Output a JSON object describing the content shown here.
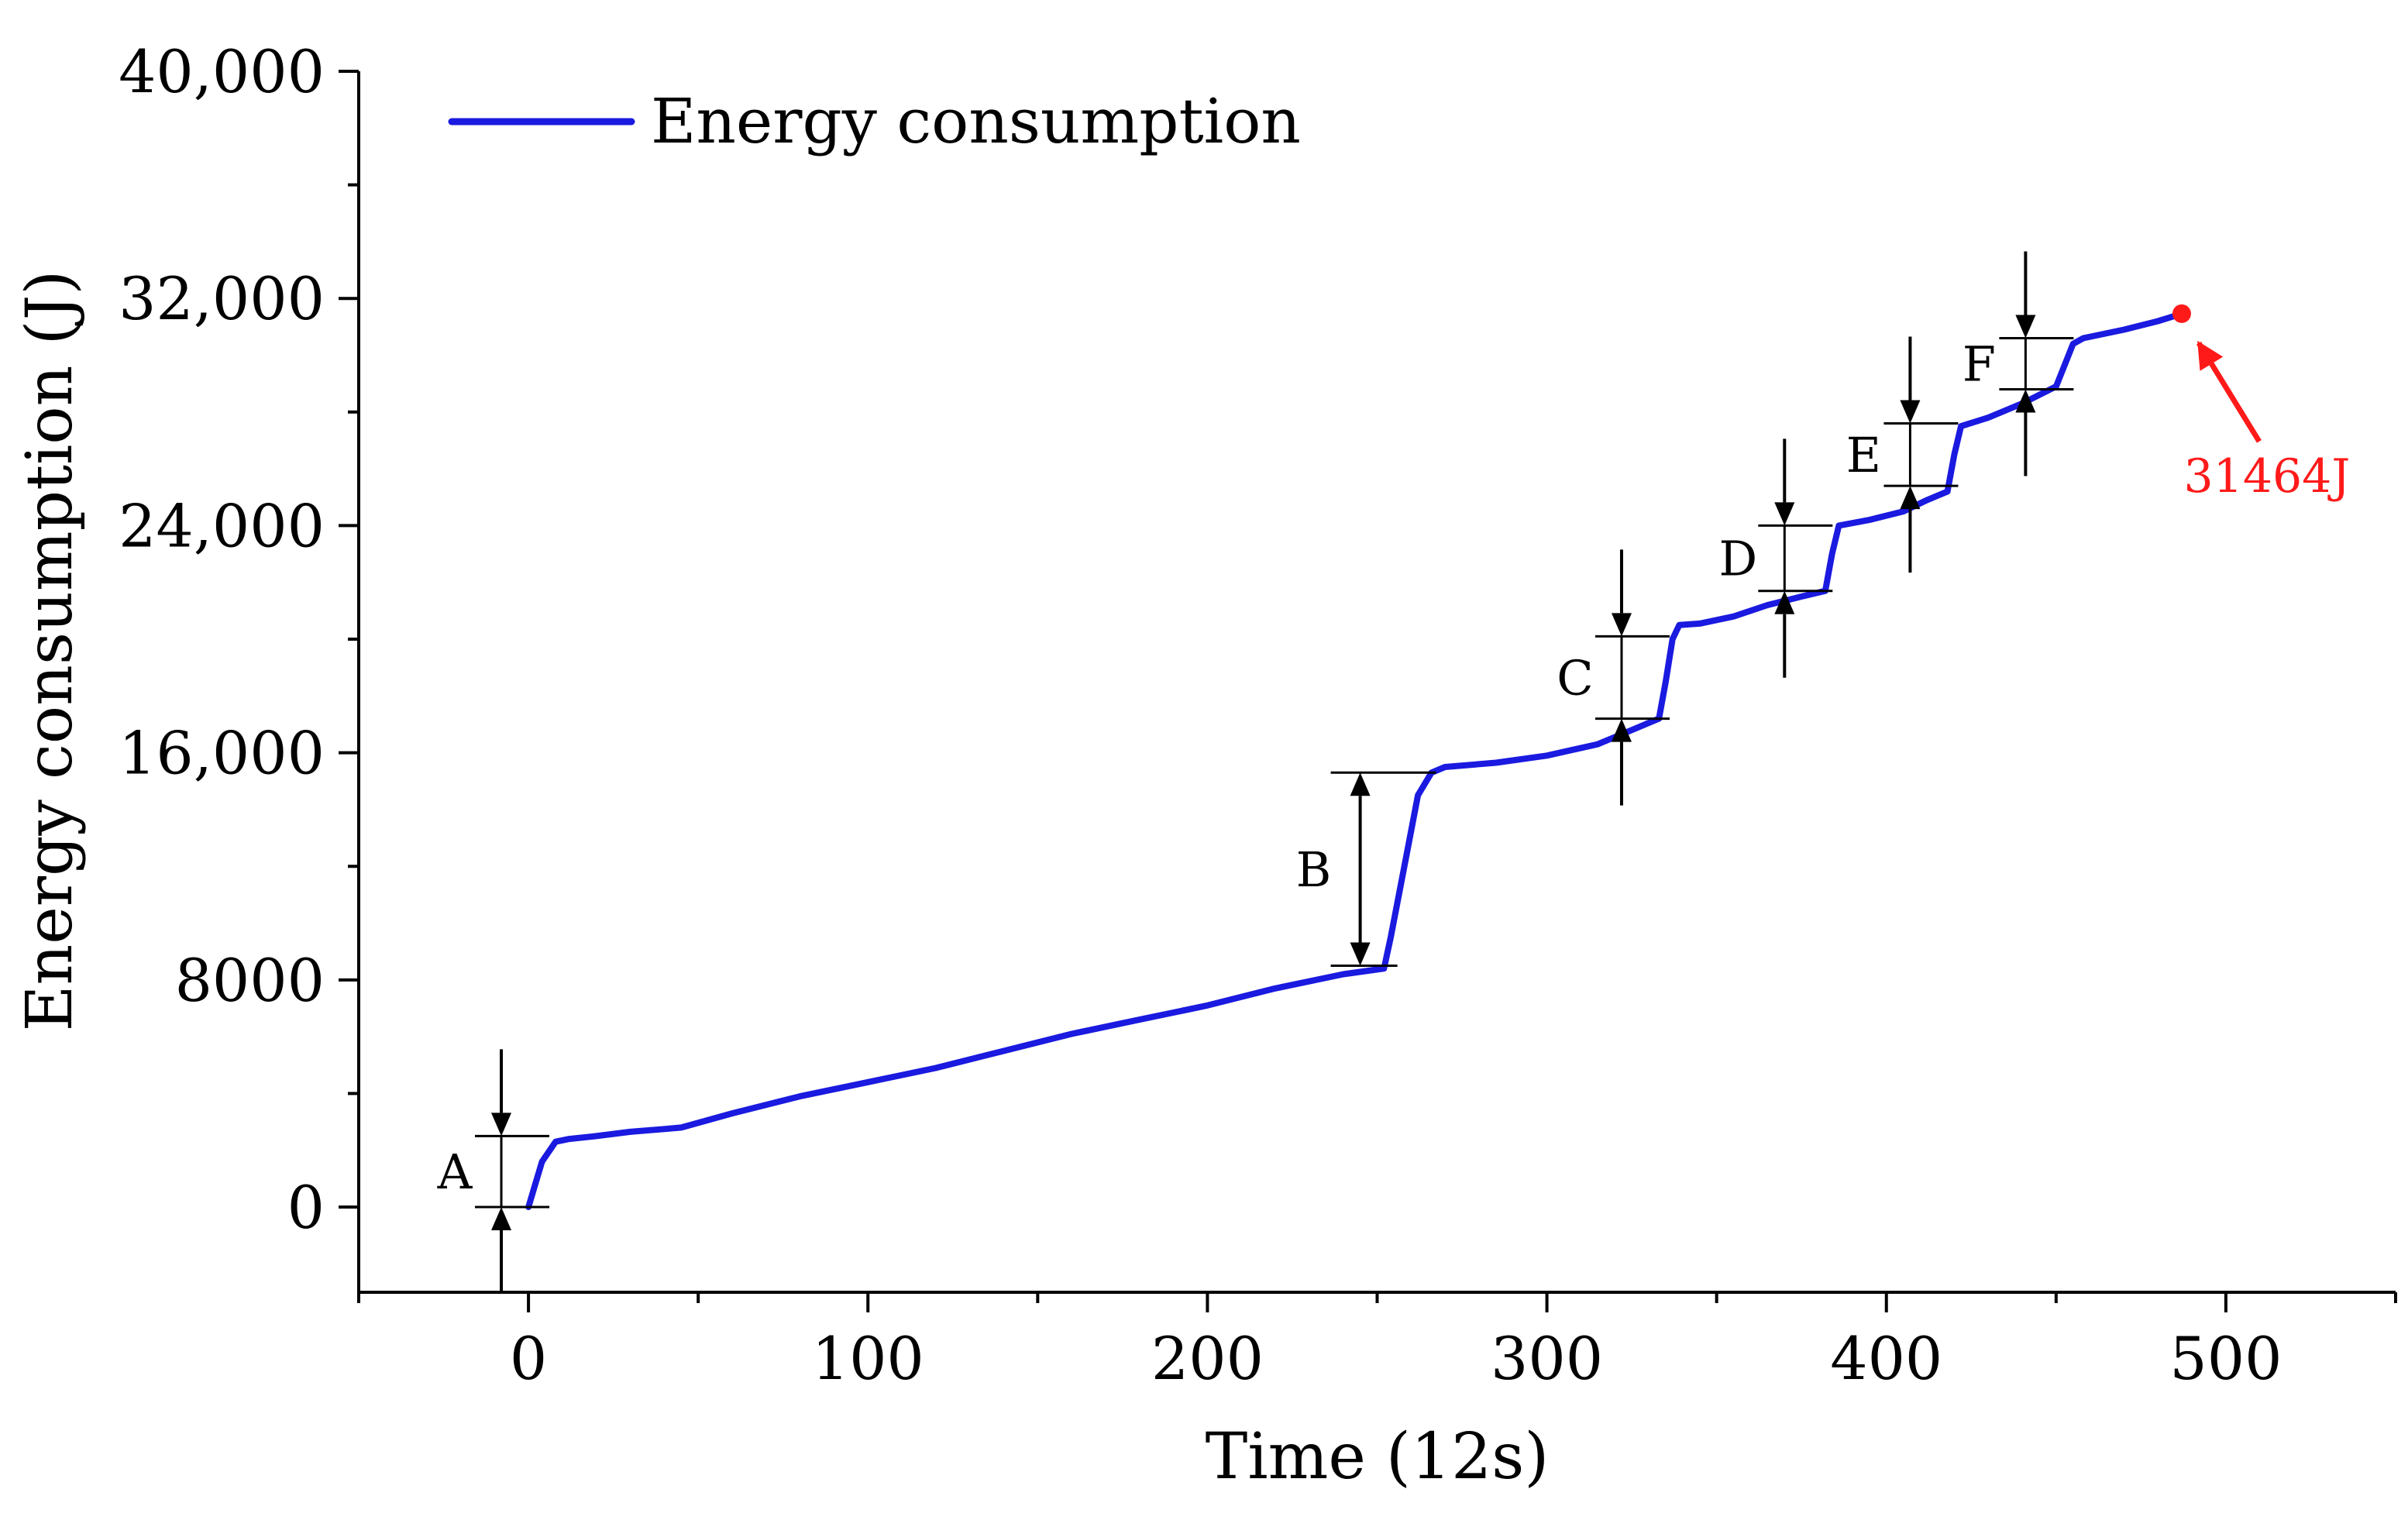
{
  "chart_data": {
    "type": "line",
    "xlabel": "Time (12s)",
    "ylabel": "Energy consumption (J)",
    "xlim": [
      -50,
      550
    ],
    "ylim": [
      -3000,
      40000
    ],
    "x_ticks": [
      0,
      100,
      200,
      300,
      400,
      500
    ],
    "x_tick_labels": [
      "0",
      "100",
      "200",
      "300",
      "400",
      "500"
    ],
    "y_ticks": [
      0,
      8000,
      16000,
      24000,
      32000,
      40000
    ],
    "y_tick_labels": [
      "0",
      "8000",
      "16,000",
      "24,000",
      "32,000",
      "40,000"
    ],
    "legend": {
      "position": "top-left",
      "entries": [
        "Energy consumption"
      ]
    },
    "colors": {
      "series": "#1a1ae0",
      "highlight": "#ff1a1a",
      "axis": "#000000"
    },
    "series": [
      {
        "name": "Energy consumption",
        "x": [
          0,
          2,
          4,
          8,
          12,
          20,
          30,
          40,
          45,
          60,
          80,
          100,
          120,
          140,
          160,
          180,
          200,
          220,
          240,
          252,
          254,
          258,
          262,
          266,
          270,
          285,
          300,
          315,
          325,
          333,
          335,
          337,
          339,
          345,
          355,
          365,
          375,
          382,
          384,
          386,
          395,
          405,
          412,
          418,
          420,
          422,
          430,
          440,
          450,
          452,
          455,
          458,
          470,
          480,
          487
        ],
        "y": [
          0,
          800,
          1600,
          2300,
          2400,
          2500,
          2650,
          2750,
          2800,
          3300,
          3900,
          4400,
          4900,
          5500,
          6100,
          6600,
          7100,
          7700,
          8200,
          8400,
          9500,
          12000,
          14500,
          15300,
          15500,
          15650,
          15900,
          16300,
          16800,
          17200,
          18500,
          20000,
          20500,
          20550,
          20800,
          21200,
          21500,
          21700,
          23000,
          24000,
          24200,
          24500,
          24900,
          25200,
          26500,
          27500,
          27800,
          28300,
          28900,
          29500,
          30400,
          30600,
          30900,
          31200,
          31464
        ]
      }
    ],
    "annotations": [
      {
        "label": "A",
        "x": -8,
        "y_low": 0,
        "y_high": 2500
      },
      {
        "label": "B",
        "x": 245,
        "y_low": 8500,
        "y_high": 15300
      },
      {
        "label": "C",
        "x": 322,
        "y_low": 17200,
        "y_high": 20100
      },
      {
        "label": "D",
        "x": 370,
        "y_low": 21700,
        "y_high": 24000
      },
      {
        "label": "E",
        "x": 407,
        "y_low": 25400,
        "y_high": 27600
      },
      {
        "label": "F",
        "x": 441,
        "y_low": 28800,
        "y_high": 30600
      }
    ],
    "end_point": {
      "x": 487,
      "y": 31464,
      "label": "31464J"
    }
  }
}
